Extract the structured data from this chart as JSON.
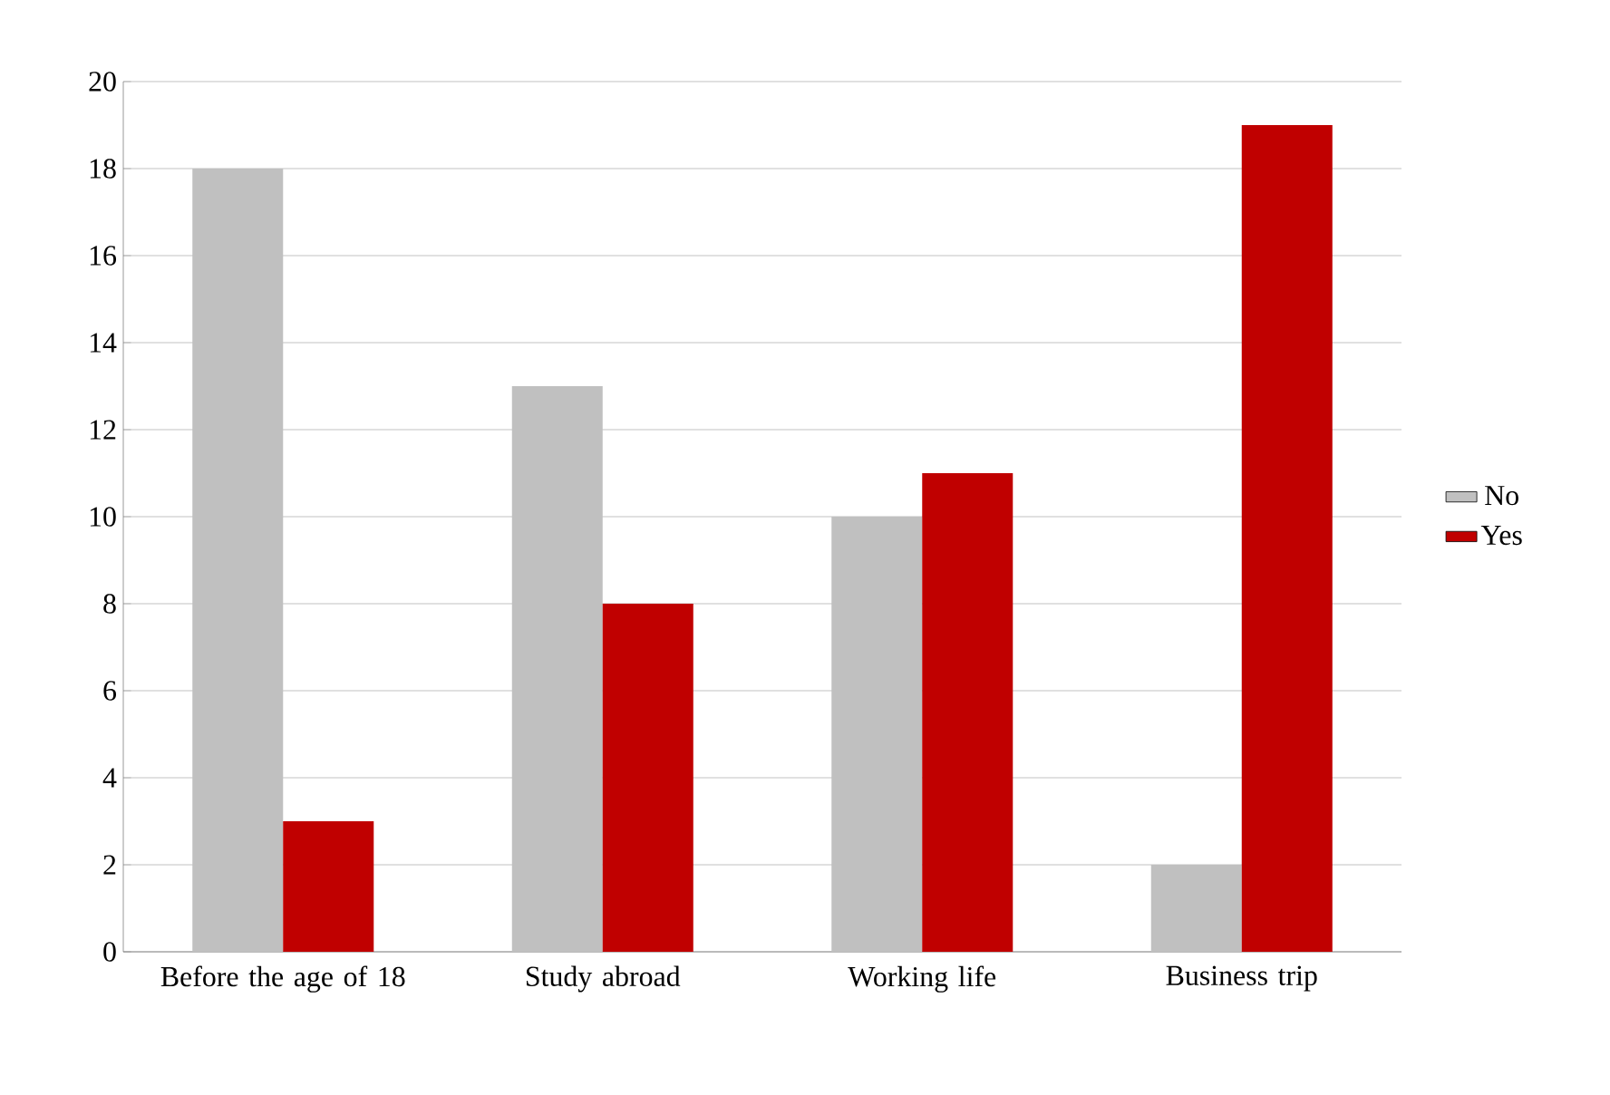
{
  "chart_data": {
    "type": "bar",
    "categories": [
      "Before the age of 18",
      "Study abroad",
      "Working life",
      "Business trip"
    ],
    "series": [
      {
        "name": "No",
        "color": "#c0c0c0",
        "values": [
          18,
          13,
          10,
          2
        ]
      },
      {
        "name": "Yes",
        "color": "#c00000",
        "values": [
          3,
          8,
          11,
          19
        ]
      }
    ],
    "ylim": [
      0,
      20
    ],
    "yticks": [
      0,
      2,
      4,
      6,
      8,
      10,
      12,
      14,
      16,
      18,
      20
    ],
    "grid": "y",
    "legend": "right"
  }
}
